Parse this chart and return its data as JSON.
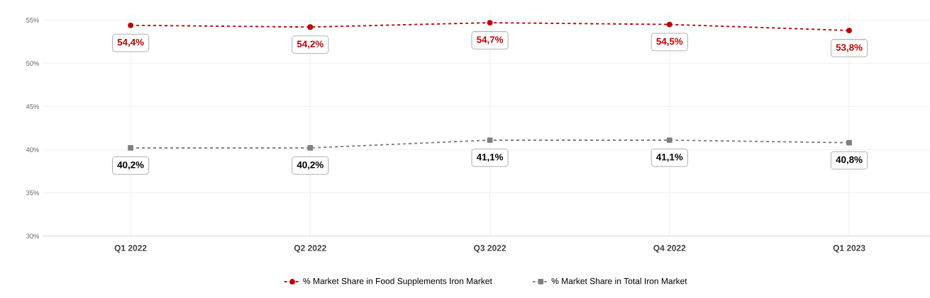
{
  "chart_data": {
    "type": "line",
    "categories": [
      "Q1 2022",
      "Q2 2022",
      "Q3 2022",
      "Q4 2022",
      "Q1 2023"
    ],
    "series": [
      {
        "name": "% Market Share in Food Supplements Iron Market",
        "color": "#c00000",
        "marker": "circle",
        "values": [
          54.4,
          54.2,
          54.7,
          54.5,
          53.8
        ],
        "value_labels": [
          "54,4%",
          "54,2%",
          "54,7%",
          "54,5%",
          "53,8%"
        ]
      },
      {
        "name": "% Market Share in Total Iron Market",
        "color": "#7f7f7f",
        "marker": "square",
        "values": [
          40.2,
          40.2,
          41.1,
          41.1,
          40.8
        ],
        "value_labels": [
          "40,2%",
          "40,2%",
          "41,1%",
          "41,1%",
          "40,8%"
        ]
      }
    ],
    "ylim": [
      30,
      55.8
    ],
    "yticks": [
      {
        "value": 30,
        "label": "30%"
      },
      {
        "value": 35,
        "label": "35%"
      },
      {
        "value": 40,
        "label": "40%"
      },
      {
        "value": 45,
        "label": "45%"
      },
      {
        "value": 50,
        "label": "50%"
      },
      {
        "value": 55,
        "label": "55%"
      }
    ],
    "grid": true,
    "legend": "bottom",
    "line_style": "dashed"
  }
}
